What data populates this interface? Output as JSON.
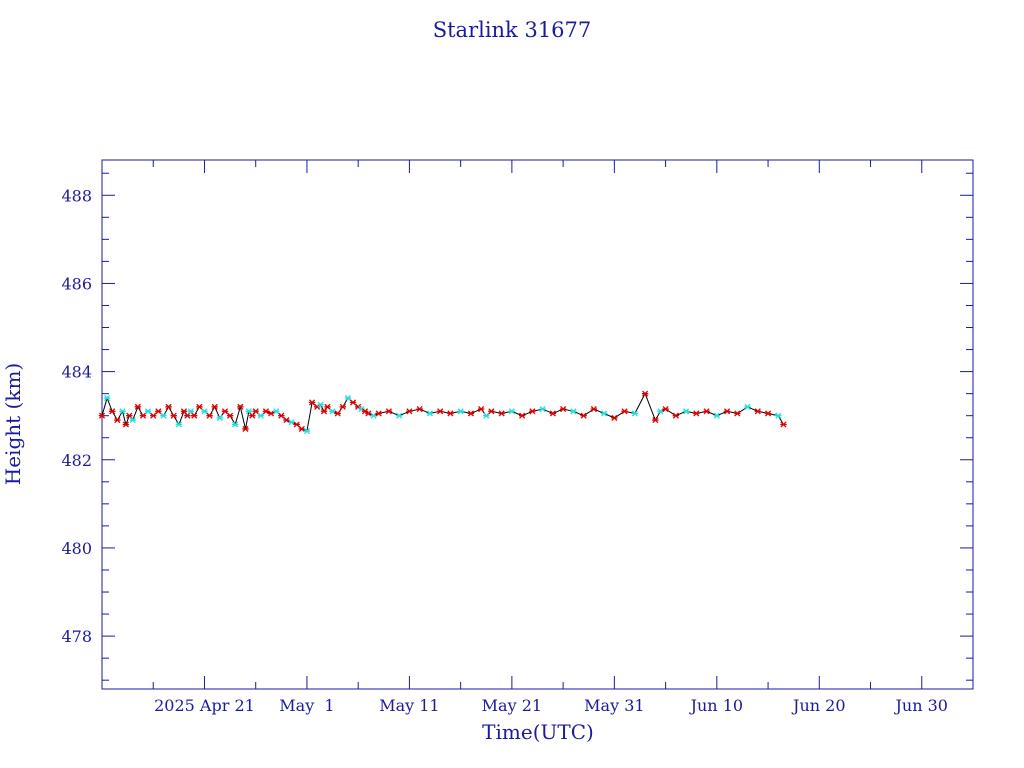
{
  "chart_data": {
    "type": "line",
    "title": "Starlink 31677",
    "xlabel": "Time(UTC)",
    "ylabel": "Height (km)",
    "xlim": [
      "2025-04-11",
      "2025-07-05"
    ],
    "ylim": [
      476.8,
      488.8
    ],
    "y_ticks": [
      478,
      480,
      482,
      484,
      486,
      488
    ],
    "x_ticks": [
      {
        "date": "2025-04-21",
        "label": "2025 Apr 21"
      },
      {
        "date": "2025-05-01",
        "label": "May  1"
      },
      {
        "date": "2025-05-11",
        "label": "May 11"
      },
      {
        "date": "2025-05-21",
        "label": "May 21"
      },
      {
        "date": "2025-05-31",
        "label": "May 31"
      },
      {
        "date": "2025-06-10",
        "label": "Jun 10"
      },
      {
        "date": "2025-06-20",
        "label": "Jun 20"
      },
      {
        "date": "2025-06-30",
        "label": "Jun 30"
      }
    ],
    "grid": false,
    "colors": {
      "axes": "#1a1a9c",
      "line": "#000000",
      "points": "#dd0000",
      "points_alt": "#22dddd"
    },
    "series": [
      {
        "x": [
          "2025-04-11",
          "2025-04-11",
          "2025-04-12",
          "2025-04-12",
          "2025-04-13",
          "2025-04-13",
          "2025-04-13",
          "2025-04-14",
          "2025-04-14",
          "2025-04-15",
          "2025-04-15",
          "2025-04-16",
          "2025-04-16",
          "2025-04-17",
          "2025-04-17",
          "2025-04-18",
          "2025-04-18",
          "2025-04-19",
          "2025-04-19",
          "2025-04-19",
          "2025-04-20",
          "2025-04-20",
          "2025-04-21",
          "2025-04-21",
          "2025-04-22",
          "2025-04-22",
          "2025-04-23",
          "2025-04-23",
          "2025-04-24",
          "2025-04-24",
          "2025-04-25",
          "2025-04-25",
          "2025-04-25",
          "2025-04-26",
          "2025-04-26",
          "2025-04-27",
          "2025-04-27",
          "2025-04-28",
          "2025-04-28",
          "2025-04-29",
          "2025-04-29",
          "2025-04-30",
          "2025-04-30",
          "2025-05-01",
          "2025-05-01",
          "2025-05-02",
          "2025-05-02",
          "2025-05-02",
          "2025-05-03",
          "2025-05-03",
          "2025-05-04",
          "2025-05-04",
          "2025-05-05",
          "2025-05-05",
          "2025-05-06",
          "2025-05-06",
          "2025-05-06",
          "2025-05-07",
          "2025-05-07",
          "2025-05-08",
          "2025-05-09",
          "2025-05-10",
          "2025-05-11",
          "2025-05-12",
          "2025-05-13",
          "2025-05-14",
          "2025-05-15",
          "2025-05-16",
          "2025-05-17",
          "2025-05-18",
          "2025-05-18",
          "2025-05-19",
          "2025-05-20",
          "2025-05-21",
          "2025-05-22",
          "2025-05-23",
          "2025-05-24",
          "2025-05-25",
          "2025-05-26",
          "2025-05-27",
          "2025-05-28",
          "2025-05-29",
          "2025-05-30",
          "2025-05-31",
          "2025-06-01",
          "2025-06-02",
          "2025-06-03",
          "2025-06-04",
          "2025-06-04",
          "2025-06-05",
          "2025-06-06",
          "2025-06-07",
          "2025-06-08",
          "2025-06-09",
          "2025-06-10",
          "2025-06-11",
          "2025-06-12",
          "2025-06-13",
          "2025-06-14",
          "2025-06-15",
          "2025-06-16",
          "2025-06-16"
        ],
        "y": [
          483.0,
          483.4,
          483.1,
          482.9,
          483.1,
          482.8,
          483.0,
          482.9,
          483.2,
          483.0,
          483.1,
          483.0,
          483.1,
          483.0,
          483.2,
          483.0,
          482.8,
          483.1,
          483.0,
          483.1,
          483.0,
          483.2,
          483.1,
          483.0,
          483.2,
          482.95,
          483.1,
          483.0,
          482.8,
          483.2,
          482.7,
          483.1,
          483.0,
          483.1,
          483.0,
          483.1,
          483.05,
          483.1,
          483.0,
          482.9,
          482.85,
          482.8,
          482.7,
          482.65,
          483.3,
          483.2,
          483.25,
          483.1,
          483.2,
          483.1,
          483.05,
          483.2,
          483.4,
          483.3,
          483.2,
          483.15,
          483.1,
          483.05,
          483.0,
          483.05,
          483.1,
          483.0,
          483.1,
          483.15,
          483.05,
          483.1,
          483.05,
          483.1,
          483.05,
          483.15,
          483.0,
          483.1,
          483.05,
          483.1,
          483.0,
          483.1,
          483.15,
          483.05,
          483.15,
          483.1,
          483.0,
          483.15,
          483.05,
          482.95,
          483.1,
          483.05,
          483.5,
          482.9,
          483.1,
          483.15,
          483.0,
          483.1,
          483.05,
          483.1,
          483.0,
          483.1,
          483.05,
          483.2,
          483.1,
          483.05,
          483.0,
          482.8
        ]
      }
    ]
  }
}
